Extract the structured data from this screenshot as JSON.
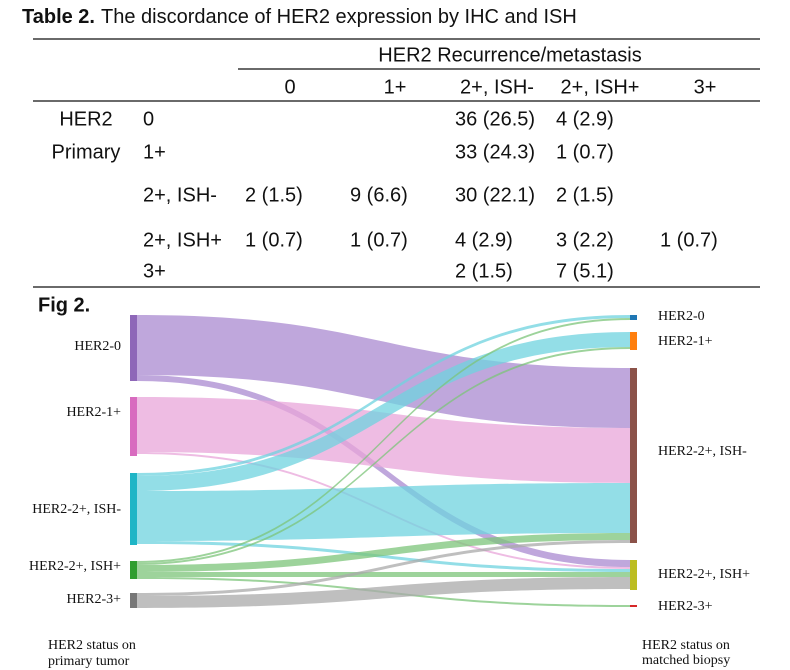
{
  "table": {
    "label": "Table 2.",
    "title": "The discordance of HER2 expression by IHC and ISH",
    "column_group": "HER2 Recurrence/metastasis",
    "columns": [
      "0",
      "1+",
      "2+, ISH-",
      "2+, ISH+",
      "3+"
    ],
    "row_group": [
      "HER2",
      "Primary"
    ],
    "rows": [
      {
        "label": "0",
        "cells": [
          null,
          null,
          "36 (26.5)",
          "4 (2.9)",
          null
        ]
      },
      {
        "label": "1+",
        "cells": [
          null,
          null,
          "33 (24.3)",
          "1 (0.7)",
          null
        ]
      },
      {
        "label": "2+, ISH-",
        "cells": [
          "2 (1.5)",
          "9 (6.6)",
          "30 (22.1)",
          "2 (1.5)",
          null
        ]
      },
      {
        "label": "2+, ISH+",
        "cells": [
          "1 (0.7)",
          "1 (0.7)",
          "4 (2.9)",
          "3 (2.2)",
          "1 (0.7)"
        ]
      },
      {
        "label": "3+",
        "cells": [
          null,
          null,
          "2 (1.5)",
          "7 (5.1)",
          null
        ]
      }
    ]
  },
  "figure": {
    "title": "Fig 2.",
    "left_nodes": [
      "HER2-0",
      "HER2-1+",
      "HER2-2+, ISH-",
      "HER2-2+, ISH+",
      "HER2-3+"
    ],
    "right_nodes": [
      "HER2-0",
      "HER2-1+",
      "HER2-2+, ISH-",
      "HER2-2+, ISH+",
      "HER2-3+"
    ],
    "left_caption": [
      "HER2 status on",
      "primary tumor"
    ],
    "right_caption": [
      "HER2 status on",
      "matched biopsy"
    ]
  }
}
